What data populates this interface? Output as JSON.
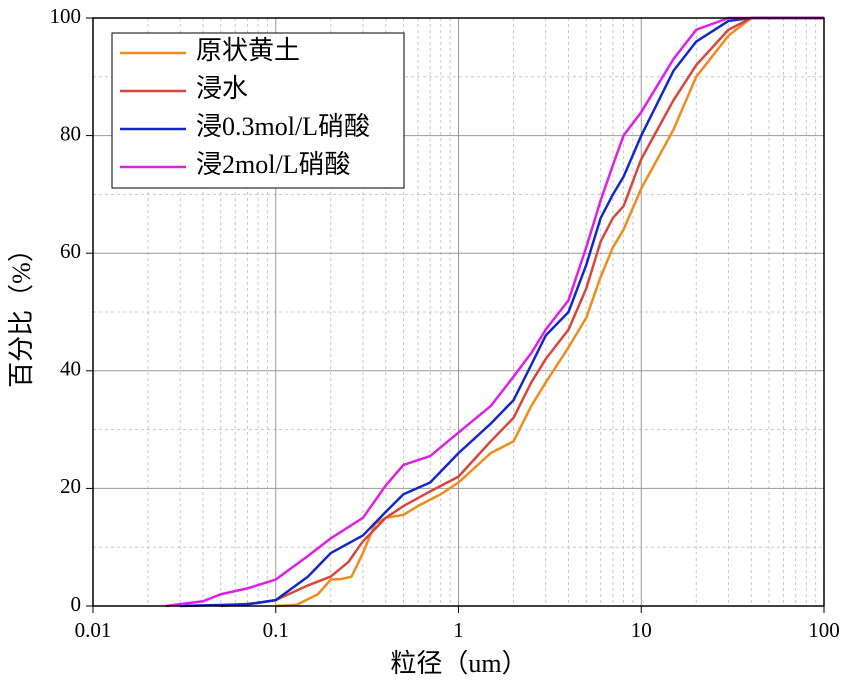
{
  "chart_data": {
    "type": "line",
    "xlabel": "粒径（um）",
    "ylabel": "百分比（%）",
    "xscale": "log",
    "xlim": [
      0.01,
      100
    ],
    "xticks": [
      0.01,
      0.1,
      1,
      10,
      100
    ],
    "xminorticks": [
      0.02,
      0.03,
      0.04,
      0.05,
      0.06,
      0.07,
      0.08,
      0.09,
      0.2,
      0.3,
      0.4,
      0.5,
      0.6,
      0.7,
      0.8,
      0.9,
      2,
      3,
      4,
      5,
      6,
      7,
      8,
      9,
      20,
      30,
      40,
      50,
      60,
      70,
      80,
      90
    ],
    "ylim": [
      0,
      100
    ],
    "yticks": [
      0,
      20,
      40,
      60,
      80,
      100
    ],
    "yminorticks": [
      10,
      30,
      50,
      70,
      90
    ],
    "grid": true,
    "legend": "upper left",
    "series": [
      {
        "name": "原状黄土",
        "color": "#f08c1e",
        "x": [
          0.1,
          0.13,
          0.17,
          0.2,
          0.23,
          0.26,
          0.3,
          0.35,
          0.4,
          0.5,
          0.6,
          0.8,
          1,
          1.5,
          2,
          2.5,
          3,
          4,
          5,
          6,
          7,
          8,
          10,
          15,
          20,
          30,
          40,
          100
        ],
        "values": [
          0,
          0.2,
          2,
          4.5,
          4.6,
          5,
          9,
          14,
          15,
          15.5,
          17,
          19,
          21,
          26,
          28,
          34,
          38,
          44,
          49,
          56,
          61,
          64,
          71,
          81,
          90,
          97,
          100,
          100
        ]
      },
      {
        "name": "浸水",
        "color": "#d9473c",
        "x": [
          0.05,
          0.08,
          0.1,
          0.15,
          0.2,
          0.25,
          0.3,
          0.4,
          0.5,
          0.7,
          1,
          1.5,
          2,
          2.5,
          3,
          4,
          5,
          6,
          7,
          8,
          10,
          15,
          20,
          30,
          40,
          100
        ],
        "values": [
          0,
          0.5,
          1,
          3.5,
          5,
          7.5,
          11,
          15,
          17,
          19.5,
          22,
          28,
          32,
          38,
          42,
          47,
          54,
          62,
          66,
          68,
          76,
          86,
          92,
          98,
          100,
          100
        ]
      },
      {
        "name": "浸0.3mol/L硝酸",
        "color": "#1428c8",
        "x": [
          0.03,
          0.07,
          0.1,
          0.15,
          0.2,
          0.3,
          0.4,
          0.5,
          0.7,
          1,
          1.5,
          2,
          2.5,
          3,
          4,
          5,
          6,
          7,
          8,
          10,
          15,
          20,
          30,
          40,
          100
        ],
        "values": [
          0,
          0.3,
          1,
          5,
          9,
          12,
          16,
          19,
          21,
          26,
          31,
          35,
          41,
          46,
          50,
          58,
          66,
          70,
          73,
          80,
          91,
          96,
          99.5,
          100,
          100
        ]
      },
      {
        "name": "浸2mol/L硝酸",
        "color": "#e01ee6",
        "x": [
          0.025,
          0.04,
          0.05,
          0.07,
          0.1,
          0.15,
          0.2,
          0.3,
          0.4,
          0.5,
          0.7,
          1,
          1.5,
          2,
          2.5,
          3,
          4,
          5,
          6,
          7,
          8,
          10,
          15,
          20,
          30,
          100
        ],
        "values": [
          0,
          0.8,
          2,
          3,
          4.5,
          8.5,
          11.5,
          15,
          20.5,
          24,
          25.5,
          29.5,
          34,
          39,
          43,
          47,
          52,
          61,
          69,
          75,
          80,
          84,
          93,
          98,
          100,
          100
        ]
      }
    ]
  }
}
